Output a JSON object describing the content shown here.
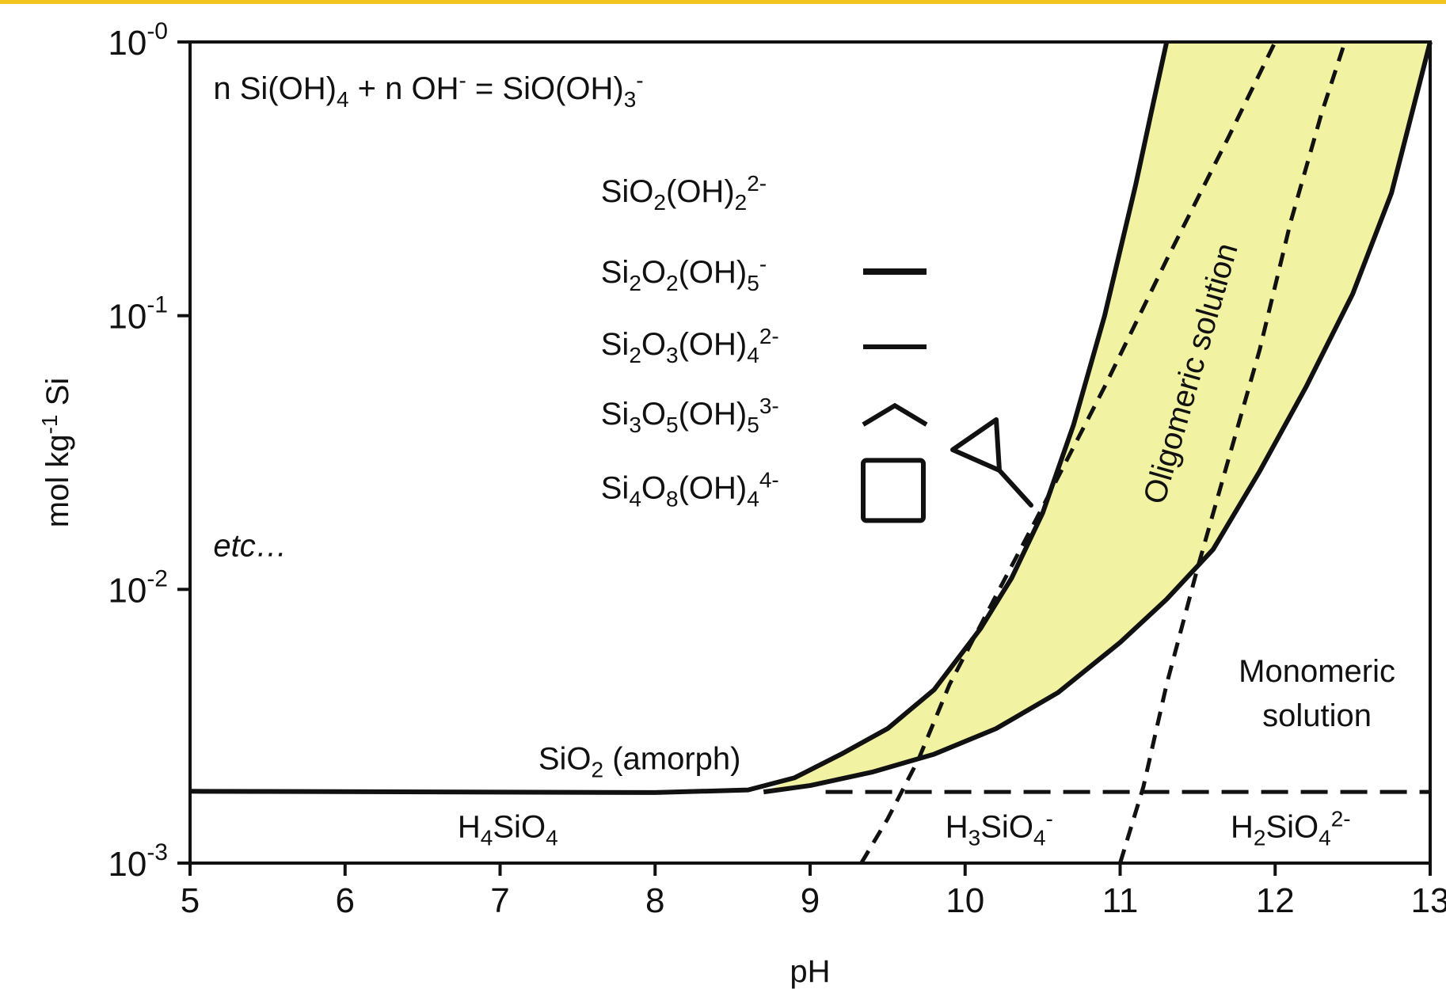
{
  "accent_color": "#f2c51f",
  "chart_data": {
    "type": "line",
    "title": "",
    "xlabel": "pH",
    "ylabel": {
      "main": "mol kg",
      "sup": "-1",
      "end": " Si"
    },
    "x_scale": "linear",
    "y_scale": "log",
    "xlim": [
      5,
      13
    ],
    "ylim": [
      0.001,
      1
    ],
    "x_ticks": [
      5,
      6,
      7,
      8,
      9,
      10,
      11,
      12,
      13
    ],
    "x_tick_labels": [
      "5",
      "6",
      "7",
      "8",
      "9",
      "10",
      "11",
      "12",
      "13"
    ],
    "y_ticks": [
      {
        "value": 1,
        "base": "10",
        "exp": "-0"
      },
      {
        "value": 0.1,
        "base": "10",
        "exp": "-1"
      },
      {
        "value": 0.01,
        "base": "10",
        "exp": "-2"
      },
      {
        "value": 0.001,
        "base": "10",
        "exp": "-3"
      }
    ],
    "grid": false,
    "fill_color": "#f2f3a2",
    "series": [
      {
        "id": "upper-solubility",
        "style": "solid",
        "points": [
          [
            5,
            0.00183
          ],
          [
            8,
            0.00181
          ],
          [
            8.6,
            0.00185
          ],
          [
            8.9,
            0.00205
          ],
          [
            9.2,
            0.0025
          ],
          [
            9.5,
            0.0031
          ],
          [
            9.8,
            0.0043
          ],
          [
            10.1,
            0.0072
          ],
          [
            10.3,
            0.011
          ],
          [
            10.5,
            0.019
          ],
          [
            10.7,
            0.04
          ],
          [
            10.9,
            0.1
          ],
          [
            11.1,
            0.3
          ],
          [
            11.2,
            0.55
          ],
          [
            11.3,
            1.0
          ]
        ]
      },
      {
        "id": "lower-solubility",
        "style": "solid",
        "points": [
          [
            8.7,
            0.00182
          ],
          [
            9.0,
            0.00192
          ],
          [
            9.4,
            0.00215
          ],
          [
            9.8,
            0.0025
          ],
          [
            10.2,
            0.0031
          ],
          [
            10.6,
            0.0042
          ],
          [
            11.0,
            0.0064
          ],
          [
            11.3,
            0.0092
          ],
          [
            11.6,
            0.014
          ],
          [
            11.9,
            0.027
          ],
          [
            12.2,
            0.055
          ],
          [
            12.5,
            0.12
          ],
          [
            12.75,
            0.28
          ],
          [
            13.0,
            1.0
          ]
        ]
      },
      {
        "id": "pk1-boundary",
        "style": "dashed",
        "points": [
          [
            9.33,
            0.001
          ],
          [
            9.5,
            0.00145
          ],
          [
            9.7,
            0.0024
          ],
          [
            9.9,
            0.0045
          ],
          [
            10.2,
            0.0095
          ],
          [
            10.5,
            0.02
          ],
          [
            10.9,
            0.055
          ],
          [
            11.3,
            0.16
          ],
          [
            11.7,
            0.45
          ],
          [
            12.0,
            1.0
          ]
        ]
      },
      {
        "id": "pk2-boundary",
        "style": "dashed",
        "points": [
          [
            11.0,
            0.001
          ],
          [
            11.15,
            0.0019
          ],
          [
            11.3,
            0.0045
          ],
          [
            11.5,
            0.012
          ],
          [
            11.7,
            0.03
          ],
          [
            11.9,
            0.075
          ],
          [
            12.1,
            0.22
          ],
          [
            12.3,
            0.55
          ],
          [
            12.45,
            1.0
          ]
        ]
      },
      {
        "id": "saturation-line",
        "style": "long-dash",
        "points": [
          [
            9.1,
            0.00182
          ],
          [
            13,
            0.00182
          ]
        ]
      }
    ],
    "annotations": {
      "reaction": {
        "t1": "n Si(OH)",
        "s1": "4",
        "t2": " + n OH",
        "p2": "-",
        "t3": " = SiO(OH)",
        "s3": "3",
        "p3": "-",
        "x": 5.15,
        "y": 0.62
      },
      "species": [
        {
          "parts": [
            [
              "SiO",
              ""
            ],
            [
              "2",
              "sub"
            ],
            [
              "(OH)",
              ""
            ],
            [
              "2",
              "sub"
            ],
            [
              "2-",
              "sup"
            ]
          ],
          "x": 7.65,
          "y": 0.26,
          "icon": "none"
        },
        {
          "parts": [
            [
              "Si",
              ""
            ],
            [
              "2",
              "sub"
            ],
            [
              "O",
              ""
            ],
            [
              "2",
              "sub"
            ],
            [
              "(OH)",
              ""
            ],
            [
              "5",
              "sub"
            ],
            [
              "-",
              "sup"
            ]
          ],
          "x": 7.65,
          "y": 0.132,
          "icon": "dimer-line-icon"
        },
        {
          "parts": [
            [
              "Si",
              ""
            ],
            [
              "2",
              "sub"
            ],
            [
              "O",
              ""
            ],
            [
              "3",
              "sub"
            ],
            [
              "(OH)",
              ""
            ],
            [
              "4",
              "sub"
            ],
            [
              "2-",
              "sup"
            ]
          ],
          "x": 7.65,
          "y": 0.072,
          "icon": "dimer-line-icon"
        },
        {
          "parts": [
            [
              "Si",
              ""
            ],
            [
              "3",
              "sub"
            ],
            [
              "O",
              ""
            ],
            [
              "5",
              "sub"
            ],
            [
              "(OH)",
              ""
            ],
            [
              "5",
              "sub"
            ],
            [
              "3-",
              "sup"
            ]
          ],
          "x": 7.65,
          "y": 0.04,
          "icon": "trimer-chevron-icon"
        },
        {
          "parts": [
            [
              "Si",
              ""
            ],
            [
              "4",
              "sub"
            ],
            [
              "O",
              ""
            ],
            [
              "8",
              "sub"
            ],
            [
              "(OH)",
              ""
            ],
            [
              "4",
              "sub"
            ],
            [
              "4-",
              "sup"
            ]
          ],
          "x": 7.65,
          "y": 0.0215,
          "icon": "tetramer-square-icon"
        }
      ],
      "etc": {
        "text": "etc…",
        "x": 5.15,
        "y": 0.0132
      },
      "oligomeric": {
        "text": "Oligomeric solution",
        "x": 11.52,
        "y": 0.06
      },
      "monomeric": {
        "line1": "Monomeric",
        "line2": "solution",
        "x": 12.27,
        "y": 0.0046
      },
      "amorph": {
        "t1": "SiO",
        "s1": "2",
        "t2": " (amorph)",
        "x": 7.9,
        "y": 0.0022
      },
      "h4sio4": {
        "t1": "H",
        "s1": "4",
        "t2": "SiO",
        "s2": "4",
        "x": 7.05,
        "y": 0.00124
      },
      "h3sio4": {
        "t1": "H",
        "s1": "3",
        "t2": "SiO",
        "s2": "4",
        "p2": "-",
        "x": 10.22,
        "y": 0.00124
      },
      "h2sio4": {
        "t1": "H",
        "s1": "2",
        "t2": "SiO",
        "s2": "4",
        "p2": "2-",
        "x": 12.1,
        "y": 0.00124
      }
    }
  }
}
